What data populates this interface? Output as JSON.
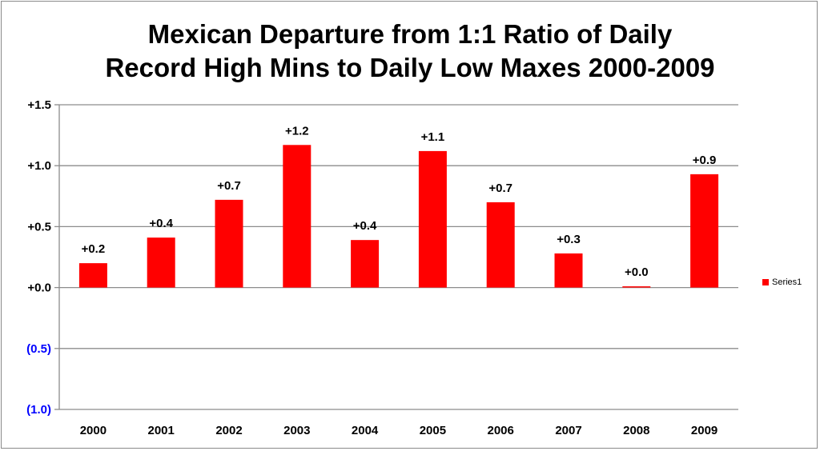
{
  "chart_data": {
    "type": "bar",
    "title": "Mexican Departure from 1:1 Ratio of Daily Record High Mins to Daily Low Maxes 2000-2009",
    "title_lines": [
      "Mexican Departure from 1:1 Ratio of Daily",
      "Record High Mins to Daily Low Maxes 2000-2009"
    ],
    "categories": [
      "2000",
      "2001",
      "2002",
      "2003",
      "2004",
      "2005",
      "2006",
      "2007",
      "2008",
      "2009"
    ],
    "series": [
      {
        "name": "Series1",
        "color": "#ff0000",
        "values": [
          0.2,
          0.41,
          0.72,
          1.17,
          0.39,
          1.12,
          0.7,
          0.28,
          0.01,
          0.93
        ],
        "data_labels": [
          "+0.2",
          "+0.4",
          "+0.7",
          "+1.2",
          "+0.4",
          "+1.1",
          "+0.7",
          "+0.3",
          "+0.0",
          "+0.9"
        ]
      }
    ],
    "ylim": [
      -1.0,
      1.5
    ],
    "yticks": [
      1.5,
      1.0,
      0.5,
      0.0,
      -0.5,
      -1.0
    ],
    "ytick_labels": [
      "+1.5",
      "+1.0",
      "+0.5",
      "+0.0",
      "(0.5)",
      "(1.0)"
    ],
    "negative_tick_color": "#0000ff",
    "grid": true,
    "legend": "right",
    "xlabel": "",
    "ylabel": ""
  }
}
